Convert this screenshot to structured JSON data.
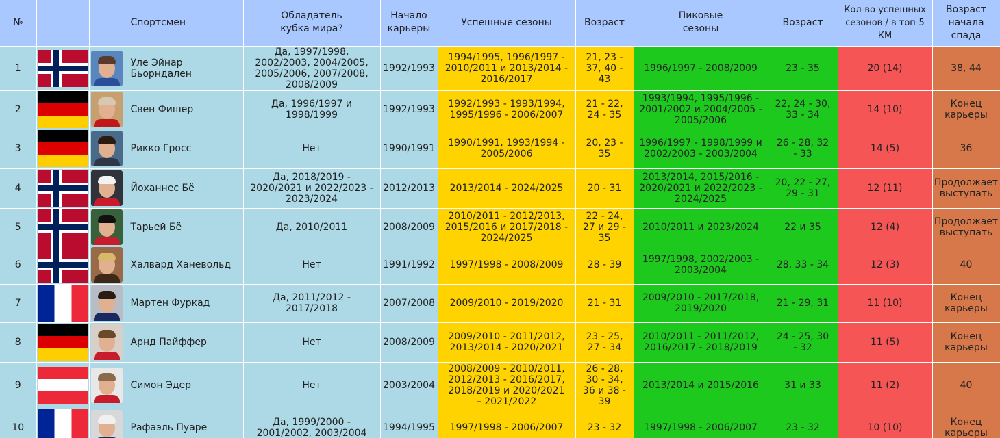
{
  "headers": {
    "num": "№",
    "athlete": "Спортсмен",
    "cup": "Обладатель кубка мира?",
    "start": "Начало карьеры",
    "seasons": "Успешные сезоны",
    "age1": "Возраст",
    "peak": "Пиковые сезоны",
    "age2": "Возраст",
    "count": "Кол-во успешных сезонов / в топ-5 КМ",
    "decline": "Возраст начала спада"
  },
  "rows": [
    {
      "num": "1",
      "flag": "norway-flag",
      "photo_bg": "#5a86c0",
      "photo_hair": "#5a3a28",
      "photo_body": "#2a4f9a",
      "name": "Уле Эйнар Бьорндален",
      "cup": "Да, 1997/1998, 2002/2003, 2004/2005, 2005/2006, 2007/2008, 2008/2009",
      "start": "1992/1993",
      "seasons": "1994/1995, 1996/1997 - 2010/2011 и 2013/2014 - 2016/2017",
      "age1": "21, 23 - 37, 40 - 43",
      "peak": "1996/1997 - 2008/2009",
      "age2": "23 - 35",
      "count": "20 (14)",
      "decline": "38, 44"
    },
    {
      "num": "2",
      "flag": "germany-flag",
      "photo_bg": "#c8a070",
      "photo_hair": "#d8c8b0",
      "photo_body": "#c01818",
      "name": "Свен Фишер",
      "cup": "Да, 1996/1997 и 1998/1999",
      "start": "1992/1993",
      "seasons": "1992/1993 - 1993/1994, 1995/1996 - 2006/2007",
      "age1": "21 - 22, 24 - 35",
      "peak": "1993/1994, 1995/1996 - 2001/2002 и 2004/2005 - 2005/2006",
      "age2": "22, 24 - 30, 33 - 34",
      "count": "14 (10)",
      "decline": "Конец карьеры"
    },
    {
      "num": "3",
      "flag": "germany-flag",
      "photo_bg": "#4a6a8a",
      "photo_hair": "#2a1a10",
      "photo_body": "#303848",
      "name": "Рикко Гросс",
      "cup": "Нет",
      "start": "1990/1991",
      "seasons": "1990/1991, 1993/1994 - 2005/2006",
      "age1": "20, 23 - 35",
      "peak": "1996/1997 - 1998/1999 и 2002/2003 - 2003/2004",
      "age2": "26 - 28, 32 - 33",
      "count": "14 (5)",
      "decline": "36"
    },
    {
      "num": "4",
      "flag": "norway-flag",
      "photo_bg": "#30343a",
      "photo_hair": "#f2f2f2",
      "photo_body": "#c81c2c",
      "name": "Йоханнес Бё",
      "cup": "Да, 2018/2019 - 2020/2021 и 2022/2023 - 2023/2024",
      "start": "2012/2013",
      "seasons": "2013/2014 - 2024/2025",
      "age1": "20 - 31",
      "peak": "2013/2014, 2015/2016 - 2020/2021 и 2022/2023 - 2024/2025",
      "age2": "20, 22 - 27, 29 - 31",
      "count": "12 (11)",
      "decline": "Продолжает выступать"
    },
    {
      "num": "5",
      "flag": "norway-flag",
      "photo_bg": "#38603a",
      "photo_hair": "#101010",
      "photo_body": "#c81c2c",
      "name": "Тарьей Бё",
      "cup": "Да, 2010/2011",
      "start": "2008/2009",
      "seasons": "2010/2011 - 2012/2013, 2015/2016 и 2017/2018 - 2024/2025",
      "age1": "22 - 24, 27 и 29 - 35",
      "peak": "2010/2011 и 2023/2024",
      "age2": "22 и 35",
      "count": "12 (4)",
      "decline": "Продолжает выступать"
    },
    {
      "num": "6",
      "flag": "norway-flag",
      "photo_bg": "#9a6a48",
      "photo_hair": "#d8b86a",
      "photo_body": "#402818",
      "name": "Халвард Ханевольд",
      "cup": "Нет",
      "start": "1991/1992",
      "seasons": "1997/1998 - 2008/2009",
      "age1": "28 - 39",
      "peak": "1997/1998, 2002/2003 - 2003/2004",
      "age2": "28, 33 - 34",
      "count": "12 (3)",
      "decline": "40"
    },
    {
      "num": "7",
      "flag": "france-flag",
      "photo_bg": "#b8bcc4",
      "photo_hair": "#2a1c14",
      "photo_body": "#1a2a60",
      "name": "Мартен Фуркад",
      "cup": "Да, 2011/2012 - 2017/2018",
      "start": "2007/2008",
      "seasons": "2009/2010 - 2019/2020",
      "age1": "21 - 31",
      "peak": "2009/2010 - 2017/2018, 2019/2020",
      "age2": "21 - 29, 31",
      "count": "11 (10)",
      "decline": "Конец карьеры"
    },
    {
      "num": "8",
      "flag": "germany-flag",
      "photo_bg": "#d8d0c8",
      "photo_hair": "#6a4a2a",
      "photo_body": "#c81c2c",
      "name": "Арнд Пайффер",
      "cup": "Нет",
      "start": "2008/2009",
      "seasons": "2009/2010 - 2011/2012, 2013/2014 - 2020/2021",
      "age1": "23 - 25, 27 - 34",
      "peak": "2010/2011 - 2011/2012, 2016/2017 - 2018/2019",
      "age2": "24 - 25, 30 - 32",
      "count": "11 (5)",
      "decline": "Конец карьеры"
    },
    {
      "num": "9",
      "flag": "austria-flag",
      "photo_bg": "#e8e8e8",
      "photo_hair": "#8a6a4a",
      "photo_body": "#c81c2c",
      "name": "Симон Эдер",
      "cup": "Нет",
      "start": "2003/2004",
      "seasons": "2008/2009 - 2010/2011, 2012/2013 - 2016/2017, 2018/2019 и 2020/2021 – 2021/2022",
      "age1": "26 - 28, 30 - 34, 36 и 38 - 39",
      "peak": "2013/2014 и 2015/2016",
      "age2": "31 и 33",
      "count": "11 (2)",
      "decline": "40"
    },
    {
      "num": "10",
      "flag": "france-flag",
      "photo_bg": "#d8d8d8",
      "photo_hair": "#f0f0f0",
      "photo_body": "#1a2a60",
      "name": "Рафаэль Пуаре",
      "cup": "Да, 1999/2000 - 2001/2002, 2003/2004",
      "start": "1994/1995",
      "seasons": "1997/1998 - 2006/2007",
      "age1": "23 - 32",
      "peak": "1997/1998 - 2006/2007",
      "age2": "23 - 32",
      "count": "10 (10)",
      "decline": "Конец карьеры"
    }
  ]
}
